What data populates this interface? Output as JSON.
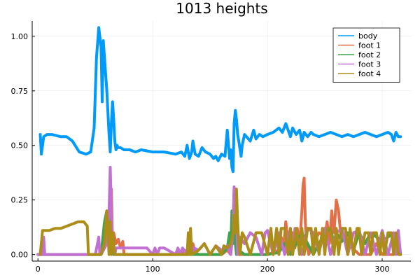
{
  "chart_data": {
    "type": "line",
    "title": "1013 heights",
    "xlabel": "",
    "ylabel": "",
    "xlim": [
      -5,
      325
    ],
    "ylim": [
      -0.03,
      1.07
    ],
    "xticks": [
      0,
      100,
      200,
      300
    ],
    "xtick_labels": [
      "0",
      "100",
      "200",
      "300"
    ],
    "yticks": [
      0,
      0.25,
      0.5,
      0.75,
      1.0
    ],
    "ytick_labels": [
      "0.00",
      "0.25",
      "0.50",
      "0.75",
      "1.00"
    ],
    "grid": true,
    "legend_position": "top-right",
    "series": [
      {
        "name": "body",
        "color": "#009AFA",
        "x": [
          2,
          3,
          5,
          8,
          12,
          20,
          25,
          30,
          36,
          42,
          46,
          49,
          51,
          53,
          55,
          56,
          57,
          58,
          60,
          62,
          63,
          64,
          65,
          66,
          67,
          68,
          69,
          70,
          72,
          75,
          80,
          85,
          90,
          100,
          110,
          120,
          125,
          128,
          130,
          132,
          134,
          135,
          137,
          140,
          143,
          146,
          150,
          153,
          155,
          157,
          160,
          163,
          165,
          167,
          168,
          169,
          170,
          171,
          172,
          173,
          174,
          175,
          177,
          178,
          180,
          185,
          188,
          190,
          193,
          196,
          200,
          205,
          210,
          213,
          216,
          218,
          220,
          222,
          225,
          228,
          230,
          232,
          235,
          238,
          240,
          245,
          250,
          255,
          260,
          265,
          270,
          275,
          280,
          285,
          290,
          295,
          300,
          305,
          308,
          310,
          312,
          314,
          316
        ],
        "y": [
          0.55,
          0.46,
          0.54,
          0.55,
          0.55,
          0.54,
          0.54,
          0.52,
          0.47,
          0.46,
          0.47,
          0.58,
          0.9,
          1.04,
          0.95,
          0.7,
          0.98,
          0.9,
          0.75,
          0.55,
          0.47,
          0.6,
          0.7,
          0.62,
          0.52,
          0.48,
          0.5,
          0.49,
          0.49,
          0.48,
          0.48,
          0.47,
          0.48,
          0.47,
          0.47,
          0.46,
          0.47,
          0.45,
          0.5,
          0.44,
          0.47,
          0.52,
          0.46,
          0.45,
          0.49,
          0.47,
          0.46,
          0.44,
          0.45,
          0.43,
          0.46,
          0.45,
          0.57,
          0.44,
          0.48,
          0.4,
          0.38,
          0.6,
          0.66,
          0.62,
          0.55,
          0.52,
          0.45,
          0.5,
          0.55,
          0.52,
          0.57,
          0.53,
          0.55,
          0.54,
          0.55,
          0.56,
          0.58,
          0.56,
          0.6,
          0.57,
          0.54,
          0.58,
          0.55,
          0.57,
          0.52,
          0.56,
          0.54,
          0.56,
          0.55,
          0.54,
          0.55,
          0.56,
          0.55,
          0.54,
          0.55,
          0.54,
          0.55,
          0.56,
          0.55,
          0.54,
          0.55,
          0.56,
          0.55,
          0.52,
          0.56,
          0.54,
          0.54
        ]
      },
      {
        "name": "foot 1",
        "color": "#E26F46",
        "x": [
          0,
          55,
          60,
          62,
          63,
          64,
          65,
          66,
          68,
          70,
          72,
          74,
          75,
          100,
          120,
          130,
          135,
          137,
          140,
          160,
          165,
          168,
          170,
          171,
          172,
          173,
          175,
          180,
          200,
          210,
          212,
          214,
          216,
          218,
          220,
          222,
          224,
          226,
          228,
          230,
          231,
          232,
          233,
          234,
          236,
          240,
          245,
          250,
          252,
          254,
          256,
          258,
          260,
          262,
          264,
          270,
          280,
          290,
          295,
          300,
          305,
          310,
          313,
          315
        ],
        "y": [
          0,
          0,
          0.05,
          0.1,
          0.15,
          0.3,
          0.05,
          0.1,
          0.05,
          0.07,
          0.03,
          0.06,
          0,
          0,
          0,
          0.02,
          0.05,
          0.01,
          0,
          0,
          0.02,
          0,
          0.15,
          0.3,
          0.1,
          0.05,
          0,
          0,
          0,
          0.02,
          0.08,
          0.03,
          0.15,
          0.05,
          0.02,
          0.1,
          0.03,
          0.12,
          0.04,
          0.2,
          0.32,
          0.35,
          0.15,
          0.05,
          0,
          0.05,
          0.1,
          0.08,
          0.15,
          0.05,
          0.2,
          0.1,
          0.25,
          0.2,
          0.08,
          0.05,
          0,
          0,
          0.05,
          0,
          0,
          0,
          0.05,
          0
        ]
      },
      {
        "name": "foot 2",
        "color": "#3DA44D",
        "x": [
          0,
          50,
          55,
          58,
          60,
          62,
          63,
          64,
          65,
          66,
          68,
          70,
          100,
          120,
          140,
          160,
          165,
          167,
          168,
          169,
          170,
          171,
          172,
          173,
          175,
          180,
          190,
          200,
          210,
          215,
          220,
          230,
          240,
          250,
          255,
          258,
          260,
          265,
          270,
          275,
          280,
          285,
          290,
          300,
          310,
          312,
          314,
          316
        ],
        "y": [
          0,
          0,
          0,
          0.15,
          0.2,
          0.12,
          0.2,
          0.05,
          0.1,
          0,
          0,
          0,
          0,
          0,
          0,
          0,
          0.03,
          0.1,
          0.02,
          0.2,
          0.05,
          0.3,
          0.05,
          0,
          0.02,
          0,
          0,
          0,
          0.01,
          0.05,
          0,
          0.1,
          0,
          0.1,
          0.12,
          0.05,
          0.1,
          0.06,
          0.1,
          0.02,
          0.1,
          0.05,
          0.1,
          0.06,
          0.1,
          0.04,
          0.1,
          0
        ]
      },
      {
        "name": "foot 3",
        "color": "#C271D2",
        "x": [
          0,
          4,
          5,
          6,
          7,
          10,
          40,
          50,
          53,
          54,
          55,
          60,
          62,
          63,
          64,
          65,
          66,
          67,
          68,
          70,
          80,
          90,
          95,
          100,
          102,
          104,
          106,
          110,
          120,
          122,
          124,
          126,
          130,
          132,
          134,
          136,
          140,
          145,
          150,
          155,
          160,
          165,
          168,
          170,
          171,
          172,
          173,
          174,
          176,
          180,
          185,
          190,
          195,
          198,
          200,
          205,
          210,
          215,
          220,
          222,
          224,
          230,
          235,
          240,
          245,
          250,
          255,
          260,
          265,
          270,
          275,
          280,
          285,
          290,
          295,
          300,
          305,
          310,
          312,
          314,
          316
        ],
        "y": [
          0,
          0,
          0.08,
          0,
          0,
          0,
          0,
          0,
          0.08,
          0,
          0,
          0.05,
          0.2,
          0.4,
          0.2,
          0.05,
          0.03,
          0,
          0.03,
          0.03,
          0.03,
          0.03,
          0.03,
          0,
          0.03,
          0,
          0.03,
          0.03,
          0,
          0.03,
          0,
          0.03,
          0,
          0.05,
          0,
          0.03,
          0.02,
          0.05,
          0,
          0.04,
          0.02,
          0.04,
          0,
          0.1,
          0.31,
          0.1,
          0.2,
          0,
          0.08,
          0.05,
          0.1,
          0.08,
          0,
          0.1,
          0.11,
          0,
          0.1,
          0,
          0.12,
          0,
          0.12,
          0,
          0.12,
          0.1,
          0.01,
          0.12,
          0,
          0.1,
          0.12,
          0,
          0.1,
          0.11,
          0,
          0.1,
          0,
          0.11,
          0,
          0.1,
          0,
          0.11,
          0
        ]
      },
      {
        "name": "foot 4",
        "color": "#AC8D18",
        "x": [
          2,
          4,
          6,
          10,
          15,
          20,
          25,
          30,
          35,
          40,
          43,
          44,
          45,
          50,
          55,
          58,
          60,
          61,
          62,
          63,
          64,
          65,
          66,
          67,
          68,
          70,
          75,
          80,
          90,
          100,
          110,
          120,
          130,
          131,
          132,
          133,
          134,
          140,
          145,
          150,
          155,
          160,
          162,
          165,
          168,
          170,
          171,
          172,
          173,
          174,
          175,
          176,
          178,
          180,
          185,
          190,
          195,
          200,
          203,
          205,
          208,
          210,
          212,
          215,
          218,
          220,
          222,
          225,
          228,
          230,
          232,
          235,
          238,
          240,
          242,
          245,
          248,
          250,
          252,
          255,
          258,
          260,
          262,
          265,
          268,
          270,
          272,
          275,
          278,
          280,
          282,
          285,
          288,
          290,
          292,
          295,
          298,
          300,
          302,
          305,
          308,
          310,
          312,
          314,
          316
        ],
        "y": [
          0,
          0.11,
          0.11,
          0.11,
          0.12,
          0.12,
          0.13,
          0.14,
          0.15,
          0.15,
          0.13,
          0,
          0,
          0,
          0,
          0.05,
          0.2,
          0.1,
          0,
          0.15,
          0,
          0.1,
          0.05,
          0,
          0,
          0,
          0,
          0,
          0,
          0,
          0,
          0,
          0,
          0.1,
          0,
          0.12,
          0,
          0.02,
          0.05,
          0,
          0.04,
          0,
          0.04,
          0.03,
          0.05,
          0.1,
          0.18,
          0.1,
          0.3,
          0.15,
          0.05,
          0,
          0.1,
          0.08,
          0,
          0.1,
          0.1,
          0,
          0.12,
          0,
          0.12,
          0,
          0.12,
          0.12,
          0,
          0.12,
          0,
          0.12,
          0,
          0.12,
          0,
          0.12,
          0.12,
          0,
          0.12,
          0,
          0.12,
          0,
          0.12,
          0.12,
          0,
          0.12,
          0,
          0.12,
          0.12,
          0,
          0.12,
          0,
          0.12,
          0.12,
          0,
          0.1,
          0.1,
          0,
          0.1,
          0.1,
          0,
          0.1,
          0,
          0.1,
          0.1,
          0,
          0.1,
          0,
          0
        ]
      }
    ]
  }
}
